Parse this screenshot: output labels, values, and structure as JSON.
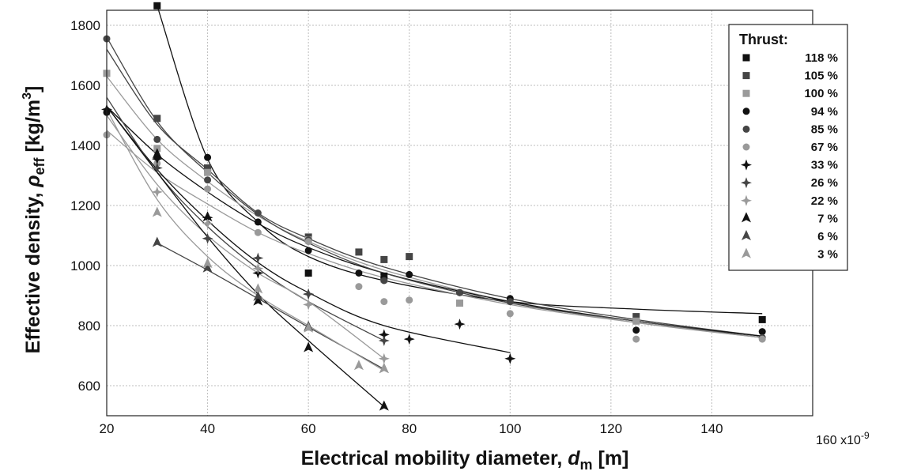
{
  "chart_data": {
    "type": "scatter",
    "title": "",
    "xlabel": {
      "prefix": "Electrical mobility diameter, ",
      "symbol": "d",
      "sub": "m",
      "unit": " [m]"
    },
    "ylabel": {
      "prefix": "Effective density, ",
      "symbol": "ρ",
      "sub": "eff",
      "unit": " [kg/m",
      "sup": "3",
      "close": "]"
    },
    "x_multiplier_label": "x10",
    "x_multiplier_exp": "-9",
    "xlim": [
      20,
      160
    ],
    "ylim": [
      500,
      1850
    ],
    "x_ticks": [
      20,
      40,
      60,
      80,
      100,
      120,
      140,
      160
    ],
    "y_ticks": [
      600,
      800,
      1000,
      1200,
      1400,
      1600,
      1800
    ],
    "grid": true,
    "legend": {
      "title": "Thrust:",
      "position": "top-right"
    },
    "series": [
      {
        "name": "118 %",
        "marker": "square",
        "color": "#111111",
        "x": [
          30,
          40,
          60,
          75,
          150
        ],
        "y": [
          1865,
          1325,
          975,
          965,
          820
        ],
        "fit": {
          "x": [
            30,
            40,
            50,
            60,
            75,
            100,
            125,
            150
          ],
          "y": [
            1865,
            1355,
            1145,
            1030,
            950,
            880,
            855,
            840
          ]
        }
      },
      {
        "name": "105 %",
        "marker": "square",
        "color": "#454545",
        "x": [
          30,
          40,
          60,
          70,
          75,
          80,
          90,
          125
        ],
        "y": [
          1490,
          1325,
          1095,
          1045,
          1020,
          1030,
          875,
          830
        ],
        "fit": {
          "x": [
            20,
            30,
            40,
            50,
            60,
            75,
            100,
            125,
            150
          ],
          "y": [
            1720,
            1470,
            1320,
            1175,
            1090,
            995,
            890,
            820,
            765
          ]
        }
      },
      {
        "name": "100 %",
        "marker": "square",
        "color": "#9a9a9a",
        "x": [
          20,
          30,
          40,
          60,
          75,
          90,
          125
        ],
        "y": [
          1640,
          1390,
          1310,
          1085,
          955,
          875,
          815
        ],
        "fit": {
          "x": [
            20,
            30,
            40,
            50,
            60,
            75,
            100,
            125,
            150
          ],
          "y": [
            1630,
            1420,
            1280,
            1165,
            1080,
            985,
            880,
            810,
            760
          ]
        }
      },
      {
        "name": "94 %",
        "marker": "circle",
        "color": "#111111",
        "x": [
          20,
          30,
          40,
          50,
          60,
          70,
          75,
          80,
          90,
          100,
          125,
          150
        ],
        "y": [
          1510,
          1360,
          1360,
          1145,
          1050,
          975,
          960,
          970,
          910,
          890,
          785,
          780
        ],
        "fit": {
          "x": [
            20,
            30,
            40,
            50,
            60,
            75,
            100,
            125,
            150
          ],
          "y": [
            1530,
            1370,
            1245,
            1140,
            1060,
            975,
            880,
            815,
            765
          ]
        }
      },
      {
        "name": "85 %",
        "marker": "circle",
        "color": "#454545",
        "x": [
          20,
          30,
          40,
          50,
          60,
          75,
          90,
          100,
          150
        ],
        "y": [
          1755,
          1420,
          1285,
          1175,
          1085,
          950,
          910,
          880,
          760
        ],
        "fit": {
          "x": [
            20,
            30,
            40,
            50,
            60,
            75,
            100,
            125,
            150
          ],
          "y": [
            1760,
            1480,
            1310,
            1170,
            1075,
            975,
            875,
            815,
            760
          ]
        }
      },
      {
        "name": "67 %",
        "marker": "circle",
        "color": "#9a9a9a",
        "x": [
          20,
          30,
          40,
          50,
          60,
          70,
          75,
          80,
          100,
          125,
          150
        ],
        "y": [
          1435,
          1340,
          1255,
          1110,
          1080,
          930,
          880,
          885,
          840,
          755,
          755
        ],
        "fit": {
          "x": [
            20,
            30,
            40,
            50,
            60,
            75,
            100,
            125,
            150
          ],
          "y": [
            1450,
            1310,
            1205,
            1110,
            1040,
            960,
            870,
            810,
            760
          ]
        }
      },
      {
        "name": "33 %",
        "marker": "star",
        "color": "#111111",
        "x": [
          20,
          30,
          40,
          50,
          60,
          75,
          80,
          90,
          100
        ],
        "y": [
          1520,
          1355,
          1160,
          975,
          905,
          770,
          755,
          805,
          690
        ],
        "fit": {
          "x": [
            20,
            30,
            40,
            50,
            60,
            75,
            100
          ],
          "y": [
            1530,
            1320,
            1150,
            1010,
            910,
            800,
            710
          ]
        }
      },
      {
        "name": "26 %",
        "marker": "star",
        "color": "#454545",
        "x": [
          30,
          40,
          50,
          60,
          75
        ],
        "y": [
          1325,
          1090,
          1025,
          905,
          750
        ],
        "fit": {
          "x": [
            20,
            30,
            40,
            50,
            60,
            75
          ],
          "y": [
            1560,
            1310,
            1130,
            990,
            880,
            750
          ]
        }
      },
      {
        "name": "22 %",
        "marker": "star",
        "color": "#9a9a9a",
        "x": [
          30,
          40,
          50,
          60,
          75
        ],
        "y": [
          1245,
          1140,
          990,
          870,
          690
        ],
        "fit": {
          "x": [
            20,
            30,
            40,
            50,
            60,
            75
          ],
          "y": [
            1500,
            1270,
            1100,
            975,
            880,
            690
          ]
        }
      },
      {
        "name": "7 %",
        "marker": "triangle",
        "color": "#111111",
        "x": [
          30,
          40,
          50,
          60,
          75
        ],
        "y": [
          1370,
          1160,
          880,
          725,
          530
        ],
        "fit": {
          "x": [
            20,
            30,
            40,
            50,
            60,
            75
          ],
          "y": [
            1530,
            1310,
            1095,
            905,
            750,
            530
          ]
        }
      },
      {
        "name": "6 %",
        "marker": "triangle",
        "color": "#454545",
        "x": [
          30,
          40,
          50,
          60,
          75
        ],
        "y": [
          1075,
          990,
          895,
          795,
          655
        ],
        "fit": {
          "x": [
            30,
            40,
            50,
            60,
            75
          ],
          "y": [
            1075,
            985,
            890,
            795,
            655
          ]
        }
      },
      {
        "name": "3 %",
        "marker": "triangle",
        "color": "#9a9a9a",
        "x": [
          30,
          40,
          50,
          60,
          70,
          75
        ],
        "y": [
          1175,
          1005,
          920,
          790,
          665,
          655
        ],
        "fit": {
          "x": [
            20,
            30,
            40,
            50,
            60,
            75
          ],
          "y": [
            1520,
            1220,
            1030,
            900,
            800,
            650
          ]
        }
      }
    ]
  }
}
